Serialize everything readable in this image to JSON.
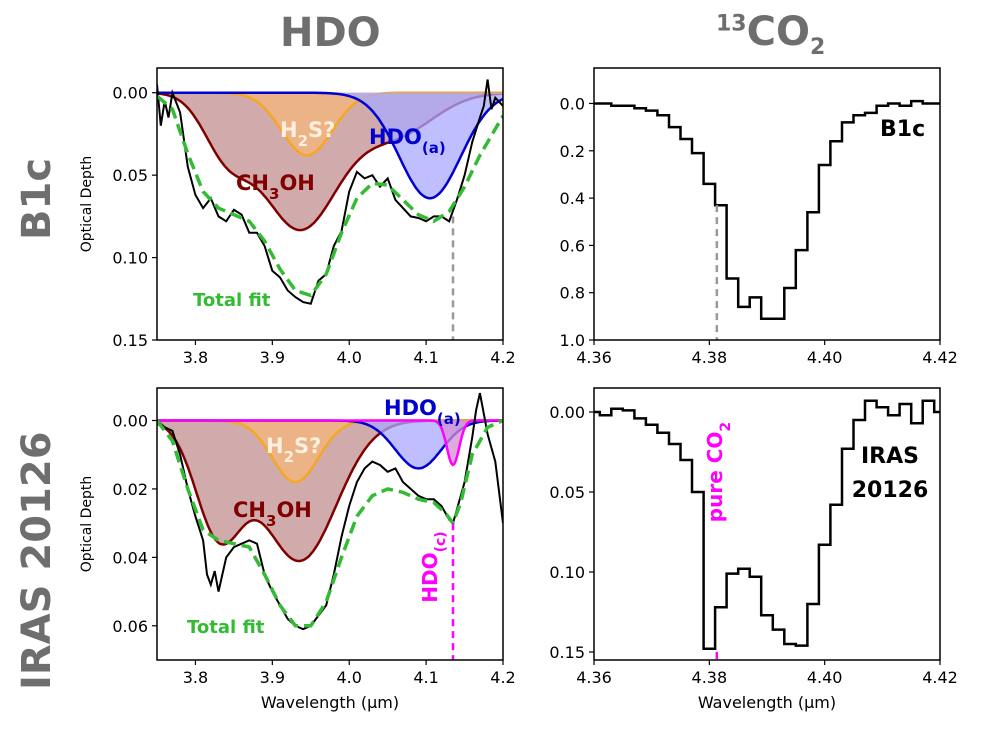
{
  "headers": {
    "left": "HDO",
    "right_sup": "13",
    "right_main": "CO",
    "right_sub": "2"
  },
  "row_labels": [
    "B1c",
    "IRAS 20126"
  ],
  "colors": {
    "hdo_fill": "#aaaaff",
    "hdo_line": "#0000d0",
    "ch3oh_fill": "#c28f8f",
    "ch3oh_line": "#800000",
    "h2s_fill": "#f3b57a",
    "h2s_line": "#f5a623",
    "hdoc_fill": "#d48fd4",
    "hdoc_line": "#ff00ff",
    "total_fit": "#33bb33",
    "data": "#000000",
    "gray_dash": "#999999"
  },
  "chart_data": [
    {
      "type": "area",
      "panel": "B1c HDO",
      "ylabel": "Optical Depth",
      "xlabel": "",
      "xlim": [
        3.75,
        4.2
      ],
      "ylim": [
        0.15,
        -0.015
      ],
      "xticks": [
        "3.8",
        "3.9",
        "4.0",
        "4.1",
        "4.2"
      ],
      "yticks": [
        "0.00",
        "0.05",
        "0.10",
        "0.15"
      ],
      "ytick_values": [
        0.0,
        0.05,
        0.1,
        0.15
      ],
      "components": [
        {
          "name": "CH3OH",
          "color": "ch3oh",
          "peaks": [
            [
              3.84,
              0.032,
              0.03
            ],
            [
              3.935,
              0.082,
              0.05
            ],
            [
              4.06,
              0.025,
              0.05
            ]
          ]
        },
        {
          "name": "H2S?",
          "color": "h2s",
          "peaks": [
            [
              3.945,
              0.038,
              0.033
            ]
          ]
        },
        {
          "name": "HDO(a)",
          "color": "hdo",
          "peaks": [
            [
              4.105,
              0.064,
              0.04
            ]
          ]
        }
      ],
      "total_fit": [
        [
          3.75,
          0.002
        ],
        [
          3.77,
          0.01
        ],
        [
          3.79,
          0.037
        ],
        [
          3.81,
          0.06
        ],
        [
          3.83,
          0.07
        ],
        [
          3.85,
          0.074
        ],
        [
          3.87,
          0.078
        ],
        [
          3.89,
          0.09
        ],
        [
          3.91,
          0.107
        ],
        [
          3.93,
          0.12
        ],
        [
          3.95,
          0.123
        ],
        [
          3.97,
          0.11
        ],
        [
          3.99,
          0.085
        ],
        [
          4.01,
          0.064
        ],
        [
          4.03,
          0.055
        ],
        [
          4.05,
          0.056
        ],
        [
          4.07,
          0.065
        ],
        [
          4.09,
          0.074
        ],
        [
          4.11,
          0.078
        ],
        [
          4.13,
          0.072
        ],
        [
          4.15,
          0.057
        ],
        [
          4.17,
          0.038
        ],
        [
          4.19,
          0.022
        ],
        [
          4.2,
          0.014
        ]
      ],
      "data": [
        [
          3.75,
          -0.005
        ],
        [
          3.755,
          0.02
        ],
        [
          3.76,
          0.005
        ],
        [
          3.765,
          0.015
        ],
        [
          3.77,
          0.0
        ],
        [
          3.78,
          0.012
        ],
        [
          3.79,
          0.045
        ],
        [
          3.8,
          0.062
        ],
        [
          3.81,
          0.07
        ],
        [
          3.82,
          0.064
        ],
        [
          3.83,
          0.075
        ],
        [
          3.84,
          0.078
        ],
        [
          3.85,
          0.071
        ],
        [
          3.86,
          0.074
        ],
        [
          3.87,
          0.085
        ],
        [
          3.88,
          0.085
        ],
        [
          3.89,
          0.093
        ],
        [
          3.9,
          0.108
        ],
        [
          3.91,
          0.112
        ],
        [
          3.92,
          0.12
        ],
        [
          3.93,
          0.124
        ],
        [
          3.94,
          0.127
        ],
        [
          3.95,
          0.128
        ],
        [
          3.96,
          0.114
        ],
        [
          3.97,
          0.11
        ],
        [
          3.98,
          0.093
        ],
        [
          3.99,
          0.084
        ],
        [
          4.0,
          0.06
        ],
        [
          4.01,
          0.048
        ],
        [
          4.02,
          0.052
        ],
        [
          4.03,
          0.05
        ],
        [
          4.04,
          0.057
        ],
        [
          4.05,
          0.052
        ],
        [
          4.06,
          0.065
        ],
        [
          4.07,
          0.07
        ],
        [
          4.08,
          0.075
        ],
        [
          4.09,
          0.076
        ],
        [
          4.1,
          0.078
        ],
        [
          4.11,
          0.075
        ],
        [
          4.12,
          0.075
        ],
        [
          4.13,
          0.078
        ],
        [
          4.14,
          0.065
        ],
        [
          4.15,
          0.05
        ],
        [
          4.16,
          0.03
        ],
        [
          4.17,
          0.015
        ],
        [
          4.175,
          0.008
        ],
        [
          4.18,
          -0.008
        ],
        [
          4.185,
          0.01
        ],
        [
          4.19,
          0.003
        ],
        [
          4.2,
          0.008
        ]
      ],
      "vline": {
        "x": 4.135,
        "from": 0.075,
        "color": "gray_dash"
      },
      "labels": {
        "total_fit": "Total fit",
        "ch3oh": "CH",
        "ch3oh_sub": "3",
        "ch3oh_end": "OH",
        "h2s": "H",
        "h2s_sub": "2",
        "h2s_end": "S?",
        "hdo": "HDO",
        "hdo_sub": "(a)"
      }
    },
    {
      "type": "line",
      "panel": "B1c 13CO2",
      "xlim": [
        4.36,
        4.42
      ],
      "ylim": [
        1.0,
        -0.15
      ],
      "xticks": [
        "4.36",
        "4.38",
        "4.40",
        "4.42"
      ],
      "yticks": [
        "0.0",
        "0.2",
        "0.4",
        "0.6",
        "0.8",
        "1.0"
      ],
      "ytick_values": [
        0.0,
        0.2,
        0.4,
        0.6,
        0.8,
        1.0
      ],
      "x": [
        4.36,
        4.362,
        4.364,
        4.366,
        4.368,
        4.37,
        4.372,
        4.374,
        4.376,
        4.378,
        4.38,
        4.382,
        4.384,
        4.386,
        4.388,
        4.39,
        4.392,
        4.394,
        4.396,
        4.398,
        4.4,
        4.402,
        4.404,
        4.406,
        4.408,
        4.41,
        4.412,
        4.414,
        4.416,
        4.418,
        4.42
      ],
      "values": [
        0.0,
        0.0,
        0.01,
        0.01,
        0.02,
        0.03,
        0.05,
        0.1,
        0.15,
        0.21,
        0.34,
        0.43,
        0.74,
        0.86,
        0.82,
        0.91,
        0.91,
        0.78,
        0.62,
        0.46,
        0.26,
        0.16,
        0.08,
        0.05,
        0.04,
        0.01,
        0.0,
        0.01,
        -0.01,
        0.0,
        0.0
      ],
      "vline": {
        "x": 4.3813,
        "from": 0.43,
        "color": "gray_dash"
      },
      "label": "B1c"
    },
    {
      "type": "area",
      "panel": "IRAS 20126 HDO",
      "ylabel": "Optical Depth",
      "xlabel": "Wavelength (μm)",
      "xlim": [
        3.75,
        4.2
      ],
      "ylim": [
        0.07,
        -0.0095
      ],
      "xticks": [
        "3.8",
        "3.9",
        "4.0",
        "4.1",
        "4.2"
      ],
      "yticks": [
        "0.00",
        "0.02",
        "0.04",
        "0.06"
      ],
      "ytick_values": [
        0.0,
        0.02,
        0.04,
        0.06
      ],
      "components": [
        {
          "name": "CH3OH",
          "color": "ch3oh",
          "peaks": [
            [
              3.83,
              0.032,
              0.03
            ],
            [
              3.935,
              0.041,
              0.048
            ]
          ]
        },
        {
          "name": "H2S?",
          "color": "h2s",
          "peaks": [
            [
              3.93,
              0.018,
              0.03
            ]
          ]
        },
        {
          "name": "HDO(a)",
          "color": "hdo",
          "peaks": [
            [
              4.09,
              0.014,
              0.03
            ]
          ]
        },
        {
          "name": "HDO(c)",
          "color": "hdoc",
          "peaks": [
            [
              4.135,
              0.013,
              0.008
            ]
          ]
        }
      ],
      "total_fit": [
        [
          3.75,
          0.0
        ],
        [
          3.77,
          0.006
        ],
        [
          3.79,
          0.02
        ],
        [
          3.81,
          0.032
        ],
        [
          3.83,
          0.035
        ],
        [
          3.85,
          0.036
        ],
        [
          3.87,
          0.037
        ],
        [
          3.89,
          0.045
        ],
        [
          3.91,
          0.054
        ],
        [
          3.93,
          0.06
        ],
        [
          3.95,
          0.06
        ],
        [
          3.97,
          0.053
        ],
        [
          3.99,
          0.04
        ],
        [
          4.01,
          0.028
        ],
        [
          4.03,
          0.022
        ],
        [
          4.05,
          0.02
        ],
        [
          4.07,
          0.021
        ],
        [
          4.09,
          0.023
        ],
        [
          4.11,
          0.024
        ],
        [
          4.125,
          0.027
        ],
        [
          4.135,
          0.03
        ],
        [
          4.145,
          0.024
        ],
        [
          4.16,
          0.01
        ],
        [
          4.18,
          0.002
        ],
        [
          4.2,
          0.0
        ]
      ],
      "data": [
        [
          3.75,
          0.0
        ],
        [
          3.76,
          0.002
        ],
        [
          3.77,
          0.003
        ],
        [
          3.78,
          0.01
        ],
        [
          3.79,
          0.02
        ],
        [
          3.8,
          0.028
        ],
        [
          3.81,
          0.035
        ],
        [
          3.815,
          0.045
        ],
        [
          3.82,
          0.048
        ],
        [
          3.825,
          0.044
        ],
        [
          3.83,
          0.05
        ],
        [
          3.84,
          0.04
        ],
        [
          3.85,
          0.037
        ],
        [
          3.86,
          0.036
        ],
        [
          3.87,
          0.035
        ],
        [
          3.88,
          0.036
        ],
        [
          3.89,
          0.045
        ],
        [
          3.9,
          0.05
        ],
        [
          3.91,
          0.054
        ],
        [
          3.92,
          0.058
        ],
        [
          3.93,
          0.06
        ],
        [
          3.94,
          0.061
        ],
        [
          3.95,
          0.06
        ],
        [
          3.96,
          0.057
        ],
        [
          3.97,
          0.054
        ],
        [
          3.98,
          0.045
        ],
        [
          3.99,
          0.034
        ],
        [
          4.0,
          0.025
        ],
        [
          4.01,
          0.018
        ],
        [
          4.02,
          0.014
        ],
        [
          4.03,
          0.012
        ],
        [
          4.04,
          0.013
        ],
        [
          4.05,
          0.015
        ],
        [
          4.06,
          0.014
        ],
        [
          4.07,
          0.018
        ],
        [
          4.08,
          0.02
        ],
        [
          4.09,
          0.022
        ],
        [
          4.1,
          0.023
        ],
        [
          4.11,
          0.023
        ],
        [
          4.12,
          0.025
        ],
        [
          4.13,
          0.029
        ],
        [
          4.135,
          0.03
        ],
        [
          4.14,
          0.026
        ],
        [
          4.15,
          0.018
        ],
        [
          4.16,
          0.005
        ],
        [
          4.165,
          -0.003
        ],
        [
          4.17,
          -0.008
        ],
        [
          4.175,
          -0.002
        ],
        [
          4.18,
          0.004
        ],
        [
          4.19,
          0.012
        ],
        [
          4.2,
          0.03
        ]
      ],
      "vline": {
        "x": 4.135,
        "from": 0.03,
        "color": "hdoc_line"
      },
      "labels": {
        "total_fit": "Total fit",
        "ch3oh": "CH",
        "ch3oh_sub": "3",
        "ch3oh_end": "OH",
        "h2s": "H",
        "h2s_sub": "2",
        "h2s_end": "S?",
        "hdo": "HDO",
        "hdo_sub": "(a)",
        "hdoc": "HDO",
        "hdoc_sub": "(c)"
      }
    },
    {
      "type": "line",
      "panel": "IRAS 20126 13CO2",
      "xlabel": "Wavelength (μm)",
      "xlim": [
        4.36,
        4.42
      ],
      "ylim": [
        0.155,
        -0.015
      ],
      "xticks": [
        "4.36",
        "4.38",
        "4.40",
        "4.42"
      ],
      "yticks": [
        "0.00",
        "0.05",
        "0.10",
        "0.15"
      ],
      "ytick_values": [
        0.0,
        0.05,
        0.1,
        0.15
      ],
      "x": [
        4.36,
        4.362,
        4.364,
        4.366,
        4.368,
        4.37,
        4.372,
        4.374,
        4.376,
        4.378,
        4.38,
        4.382,
        4.384,
        4.386,
        4.388,
        4.39,
        4.392,
        4.394,
        4.396,
        4.398,
        4.4,
        4.402,
        4.404,
        4.406,
        4.408,
        4.41,
        4.412,
        4.414,
        4.416,
        4.418,
        4.42
      ],
      "values": [
        0.0,
        0.002,
        -0.002,
        -0.001,
        0.004,
        0.008,
        0.013,
        0.02,
        0.03,
        0.05,
        0.148,
        0.122,
        0.101,
        0.098,
        0.103,
        0.127,
        0.136,
        0.145,
        0.146,
        0.12,
        0.083,
        0.058,
        0.023,
        0.005,
        -0.007,
        -0.003,
        0.002,
        -0.005,
        0.007,
        -0.007,
        0.0
      ],
      "vline": {
        "x": 4.3813,
        "from": 0.15,
        "color": "hdoc_line"
      },
      "vline_label": {
        "main": "pure CO",
        "sub": "2"
      },
      "label_lines": [
        "IRAS",
        "20126"
      ]
    }
  ]
}
